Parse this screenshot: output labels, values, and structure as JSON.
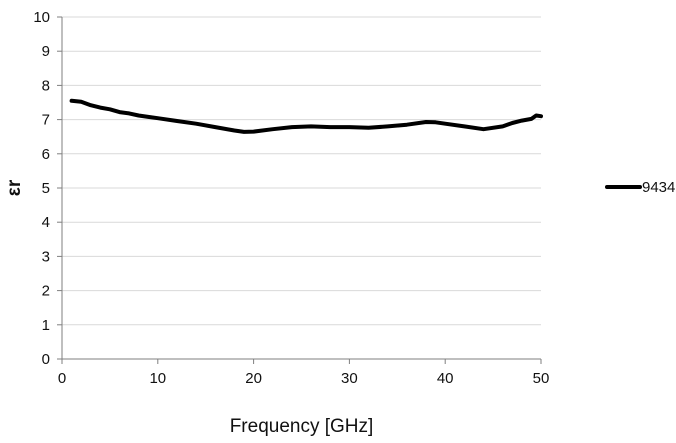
{
  "chart_data": {
    "type": "line",
    "title": "",
    "xlabel": "Frequency [GHz]",
    "ylabel": "εr",
    "xlim": [
      0,
      50
    ],
    "ylim": [
      0,
      10
    ],
    "x_ticks": [
      0,
      10,
      20,
      30,
      40,
      50
    ],
    "y_ticks": [
      0,
      1,
      2,
      3,
      4,
      5,
      6,
      7,
      8,
      9,
      10
    ],
    "grid": "horizontal",
    "legend_position": "right",
    "series": [
      {
        "name": "9434",
        "color": "#000000",
        "x": [
          1,
          2,
          3,
          4,
          5,
          6,
          7,
          8,
          9,
          10,
          12,
          14,
          16,
          18,
          19,
          20,
          22,
          24,
          26,
          28,
          30,
          32,
          34,
          36,
          38,
          39,
          40,
          42,
          44,
          46,
          47,
          48,
          49,
          49.5,
          50
        ],
        "y": [
          7.55,
          7.52,
          7.42,
          7.35,
          7.3,
          7.22,
          7.18,
          7.12,
          7.08,
          7.04,
          6.96,
          6.88,
          6.78,
          6.68,
          6.64,
          6.65,
          6.72,
          6.78,
          6.8,
          6.78,
          6.78,
          6.76,
          6.8,
          6.85,
          6.93,
          6.92,
          6.88,
          6.8,
          6.72,
          6.8,
          6.9,
          6.97,
          7.02,
          7.12,
          7.1
        ]
      }
    ]
  }
}
